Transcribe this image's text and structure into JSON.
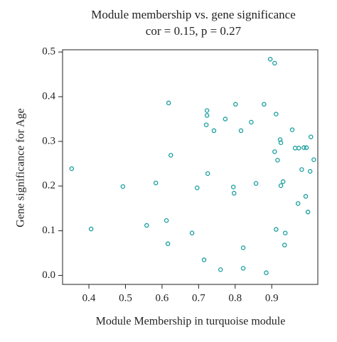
{
  "chart_data": {
    "type": "scatter",
    "title": "Module membership vs. gene significance",
    "subtitle": "cor = 0.15, p = 0.27",
    "x_label": "Module Membership in turquoise module",
    "y_label": "Gene significance for Age",
    "color": "#1a9e9e",
    "xlim": [
      0.328,
      1.026
    ],
    "ylim": [
      -0.02,
      0.505
    ],
    "xticks": [
      0.4,
      0.5,
      0.6,
      0.7,
      0.8,
      0.9
    ],
    "yticks": [
      {
        "value": 0,
        "label": "0.0"
      },
      0.1,
      0.2,
      0.3,
      0.4,
      0.5
    ],
    "x": [
      0.353,
      0.406,
      0.493,
      0.583,
      0.558,
      0.612,
      0.616,
      0.624,
      0.618,
      0.682,
      0.696,
      0.715,
      0.725,
      0.723,
      0.723,
      0.721,
      0.742,
      0.773,
      0.801,
      0.76,
      0.795,
      0.797,
      0.816,
      0.822,
      0.822,
      0.844,
      0.857,
      0.879,
      0.885,
      0.896,
      0.908,
      0.912,
      0.908,
      0.916,
      0.912,
      0.923,
      0.925,
      0.925,
      0.931,
      0.935,
      0.937,
      0.956,
      0.964,
      0.974,
      0.982,
      0.988,
      0.995,
      0.993,
      0.972,
      0.999,
      1.005,
      1.007,
      1.015
    ],
    "values": [
      0.239,
      0.104,
      0.199,
      0.207,
      0.112,
      0.123,
      0.071,
      0.269,
      0.386,
      0.095,
      0.196,
      0.035,
      0.228,
      0.369,
      0.358,
      0.337,
      0.324,
      0.35,
      0.383,
      0.013,
      0.198,
      0.184,
      0.324,
      0.062,
      0.016,
      0.343,
      0.206,
      0.383,
      0.006,
      0.484,
      0.475,
      0.361,
      0.277,
      0.258,
      0.103,
      0.304,
      0.297,
      0.201,
      0.21,
      0.068,
      0.095,
      0.326,
      0.285,
      0.285,
      0.237,
      0.286,
      0.286,
      0.177,
      0.161,
      0.142,
      0.233,
      0.31,
      0.259
    ]
  }
}
